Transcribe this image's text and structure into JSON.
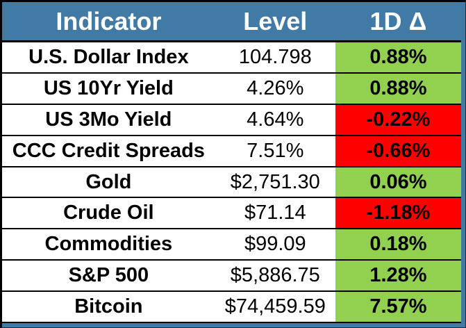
{
  "table": {
    "columns": [
      {
        "label": "Indicator"
      },
      {
        "label": "Level"
      },
      {
        "label": "1D Δ"
      }
    ],
    "rows": [
      {
        "indicator": "U.S. Dollar Index",
        "level": "104.798",
        "delta": "0.88%",
        "direction": "up"
      },
      {
        "indicator": "US 10Yr Yield",
        "level": "4.26%",
        "delta": "0.88%",
        "direction": "up"
      },
      {
        "indicator": "US 3Mo Yield",
        "level": "4.64%",
        "delta": "-0.22%",
        "direction": "down"
      },
      {
        "indicator": "CCC Credit Spreads",
        "level": "7.51%",
        "delta": "-0.66%",
        "direction": "down"
      },
      {
        "indicator": "Gold",
        "level": "$2,751.30",
        "delta": "0.06%",
        "direction": "up"
      },
      {
        "indicator": "Crude Oil",
        "level": "$71.14",
        "delta": "-1.18%",
        "direction": "down"
      },
      {
        "indicator": "Commodities",
        "level": "$99.09",
        "delta": "0.18%",
        "direction": "up"
      },
      {
        "indicator": "S&P 500",
        "level": "$5,886.75",
        "delta": "1.28%",
        "direction": "up"
      },
      {
        "indicator": "Bitcoin",
        "level": "$74,459.59",
        "delta": "7.57%",
        "direction": "up"
      }
    ]
  },
  "colors": {
    "header_bg": "#427AA6",
    "frame_border": "#427AA6",
    "positive": "#92D050",
    "negative": "#FF0000",
    "grid": "#000000",
    "header_text": "#FFFFFF",
    "body_text": "#000000"
  }
}
